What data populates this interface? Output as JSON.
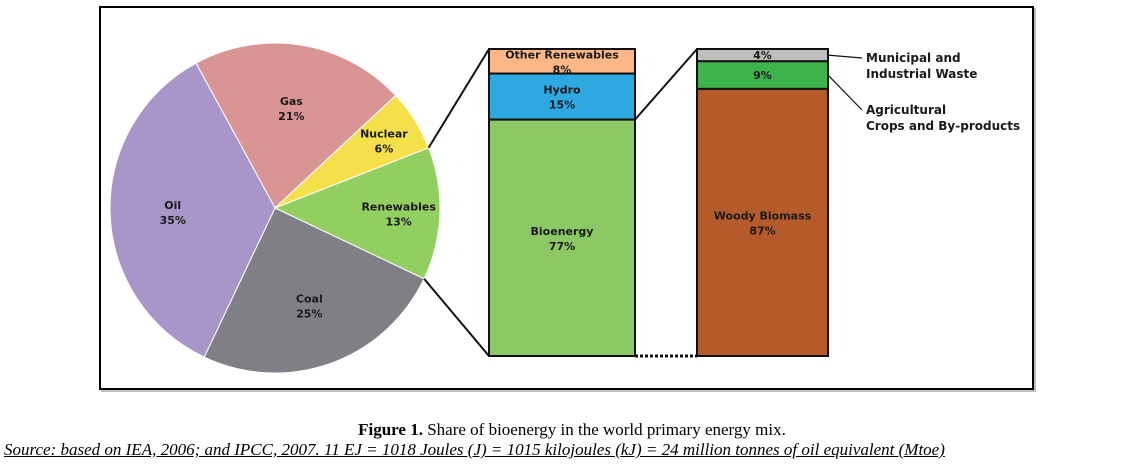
{
  "chart_data": [
    {
      "type": "pie",
      "slices": [
        {
          "label": "Gas",
          "value": 21,
          "value_label": "21%",
          "color": "#d99594"
        },
        {
          "label": "Nuclear",
          "value": 6,
          "value_label": "6%",
          "color": "#f3e04a"
        },
        {
          "label": "Renewables",
          "value": 13,
          "value_label": "13%",
          "color": "#92cf61"
        },
        {
          "label": "Coal",
          "value": 25,
          "value_label": "25%",
          "color": "#7f7f85"
        },
        {
          "label": "Oil",
          "value": 35,
          "value_label": "35%",
          "color": "#a896c8"
        }
      ]
    },
    {
      "type": "bar",
      "stacked": true,
      "segments": [
        {
          "label": "Other Renewables",
          "value": 8,
          "value_label": "8%",
          "color": "#fbb886"
        },
        {
          "label": "Hydro",
          "value": 15,
          "value_label": "15%",
          "color": "#2ea8e0"
        },
        {
          "label": "Bioenergy",
          "value": 77,
          "value_label": "77%",
          "color": "#8cc966"
        }
      ]
    },
    {
      "type": "bar",
      "stacked": true,
      "segments": [
        {
          "label": "Municipal and Industrial Waste",
          "value": 4,
          "value_label": "4%",
          "color": "#bebebe",
          "side_label": [
            "Municipal and",
            "Industrial Waste"
          ]
        },
        {
          "label": "Agricultural Crops and By-products",
          "value": 9,
          "value_label": "9%",
          "color": "#3cb44b",
          "side_label": [
            "Agricultural",
            "Crops and By-products"
          ]
        },
        {
          "label": "Woody Biomass",
          "value": 87,
          "value_label": "87%",
          "color": "#b45a2b"
        }
      ]
    }
  ],
  "caption": {
    "figure_label": "Figure 1.",
    "text": " Share of bioenergy in the world primary energy mix."
  },
  "source": "Source: based on IEA, 2006; and IPCC, 2007. 11 EJ = 1018 Joules (J) = 1015 kilojoules (kJ) = 24 million tonnes of oil equivalent (Mtoe)"
}
